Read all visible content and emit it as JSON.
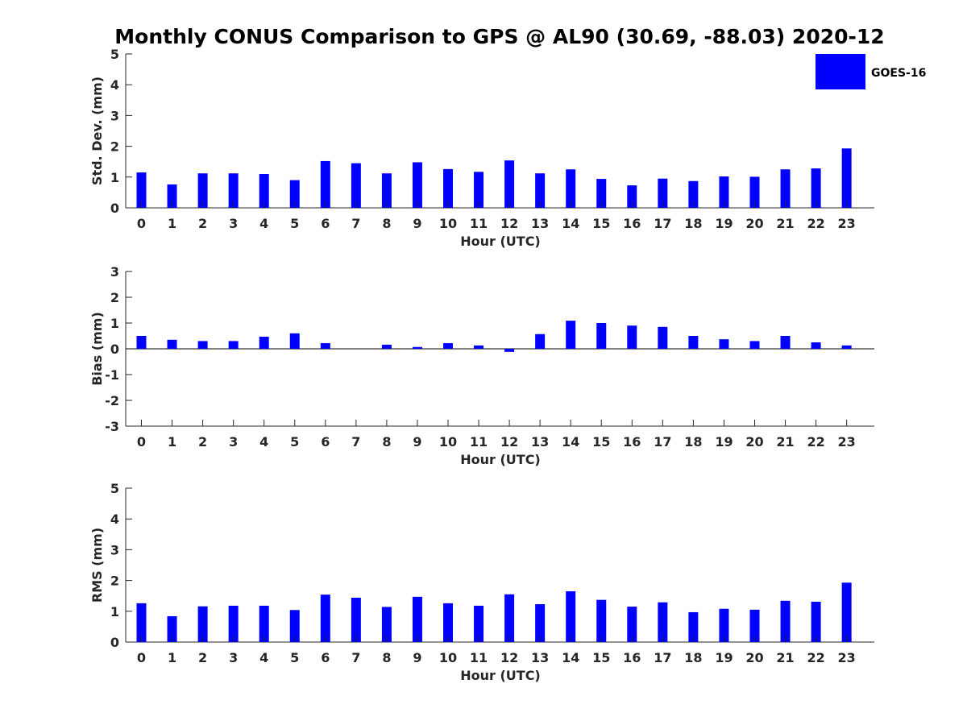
{
  "chart_data": {
    "title": "Monthly CONUS Comparison to GPS @ AL90 (30.69, -88.03) 2020-12",
    "legend": {
      "label": "GOES-16",
      "color": "#0000ff",
      "placement": "top-right"
    },
    "panels": [
      {
        "type": "bar",
        "name": "std-dev",
        "xlabel": "Hour (UTC)",
        "ylabel": "Std. Dev. (mm)",
        "ylim": [
          0,
          5
        ],
        "yticks": [
          0,
          1,
          2,
          3,
          4,
          5
        ],
        "categories": [
          "0",
          "1",
          "2",
          "3",
          "4",
          "5",
          "6",
          "7",
          "8",
          "9",
          "10",
          "11",
          "12",
          "13",
          "14",
          "15",
          "16",
          "17",
          "18",
          "19",
          "20",
          "21",
          "22",
          "23"
        ],
        "series": [
          {
            "name": "GOES-16",
            "color": "#0000ff",
            "values": [
              1.15,
              0.76,
              1.12,
              1.12,
              1.1,
              0.9,
              1.52,
              1.45,
              1.12,
              1.48,
              1.26,
              1.17,
              1.54,
              1.12,
              1.25,
              0.94,
              0.73,
              0.95,
              0.87,
              1.02,
              1.01,
              1.25,
              1.28,
              1.93
            ]
          }
        ]
      },
      {
        "type": "bar",
        "name": "bias",
        "xlabel": "Hour (UTC)",
        "ylabel": "Bias (mm)",
        "ylim": [
          -3,
          3
        ],
        "yticks": [
          -3,
          -2,
          -1,
          0,
          1,
          2,
          3
        ],
        "zero_line": true,
        "categories": [
          "0",
          "1",
          "2",
          "3",
          "4",
          "5",
          "6",
          "7",
          "8",
          "9",
          "10",
          "11",
          "12",
          "13",
          "14",
          "15",
          "16",
          "17",
          "18",
          "19",
          "20",
          "21",
          "22",
          "23"
        ],
        "series": [
          {
            "name": "GOES-16",
            "color": "#0000ff",
            "values": [
              0.5,
              0.35,
              0.3,
              0.3,
              0.47,
              0.6,
              0.22,
              0.0,
              0.16,
              0.07,
              0.22,
              0.13,
              -0.12,
              0.57,
              1.09,
              1.0,
              0.9,
              0.85,
              0.5,
              0.37,
              0.3,
              0.5,
              0.25,
              0.13
            ]
          }
        ]
      },
      {
        "type": "bar",
        "name": "rms",
        "xlabel": "Hour (UTC)",
        "ylabel": "RMS (mm)",
        "ylim": [
          0,
          5
        ],
        "yticks": [
          0,
          1,
          2,
          3,
          4,
          5
        ],
        "categories": [
          "0",
          "1",
          "2",
          "3",
          "4",
          "5",
          "6",
          "7",
          "8",
          "9",
          "10",
          "11",
          "12",
          "13",
          "14",
          "15",
          "16",
          "17",
          "18",
          "19",
          "20",
          "21",
          "22",
          "23"
        ],
        "series": [
          {
            "name": "GOES-16",
            "color": "#0000ff",
            "values": [
              1.26,
              0.84,
              1.16,
              1.18,
              1.18,
              1.04,
              1.54,
              1.44,
              1.14,
              1.47,
              1.26,
              1.18,
              1.55,
              1.23,
              1.65,
              1.37,
              1.15,
              1.29,
              0.97,
              1.08,
              1.05,
              1.34,
              1.31,
              1.93
            ]
          }
        ]
      }
    ]
  }
}
